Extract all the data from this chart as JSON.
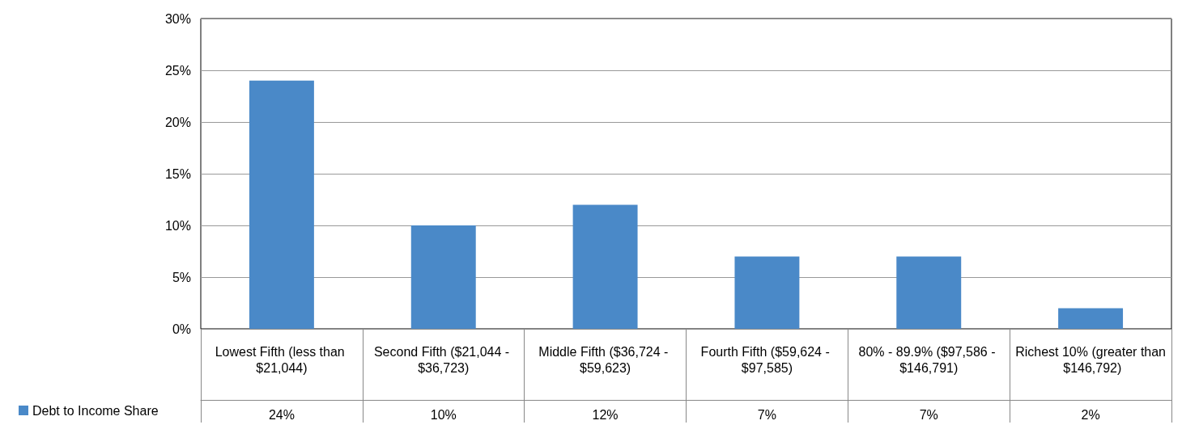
{
  "chart_data": {
    "type": "bar",
    "categories": [
      "Lowest Fifth (less than $21,044)",
      "Second Fifth ($21,044 - $36,723)",
      "Middle Fifth ($36,724 - $59,623)",
      "Fourth Fifth ($59,624 - $97,585)",
      "80% - 89.9% ($97,586 - $146,791)",
      "Richest 10% (greater than $146,792)"
    ],
    "series": [
      {
        "name": "Debt to Income Share",
        "color": "#4a89c8",
        "values": [
          24,
          10,
          12,
          7,
          7,
          2
        ],
        "value_labels": [
          "24%",
          "10%",
          "12%",
          "7%",
          "7%",
          "2%"
        ]
      }
    ],
    "ylim": [
      0,
      30
    ],
    "yticks": [
      {
        "value": 0,
        "label": "0%"
      },
      {
        "value": 5,
        "label": "5%"
      },
      {
        "value": 10,
        "label": "10%"
      },
      {
        "value": 15,
        "label": "15%"
      },
      {
        "value": 20,
        "label": "20%"
      },
      {
        "value": 25,
        "label": "25%"
      },
      {
        "value": 30,
        "label": "30%"
      }
    ],
    "grid": "y",
    "legend": "bottom left"
  }
}
